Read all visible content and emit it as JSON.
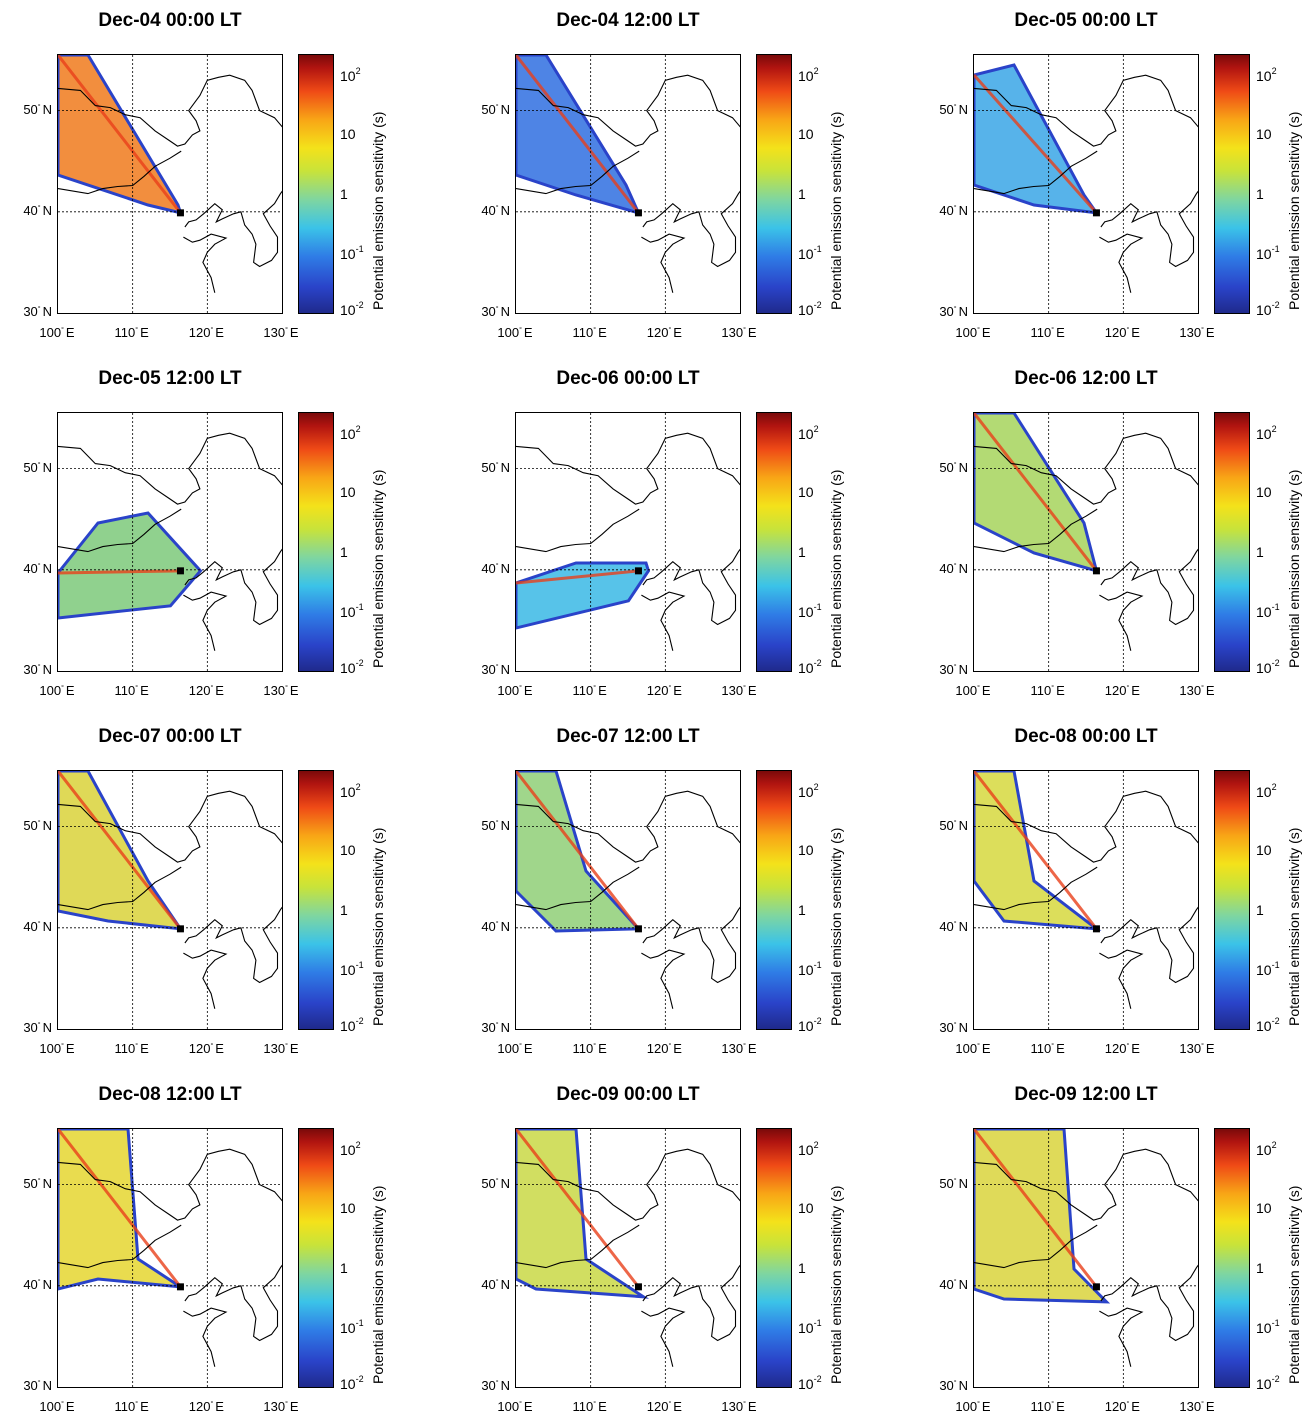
{
  "panels": [
    {
      "title": "Dec-04 00:00 LT",
      "color": "#f07a1c"
    },
    {
      "title": "Dec-04 12:00 LT",
      "color": "#2f6fe0"
    },
    {
      "title": "Dec-05 00:00 LT",
      "color": "#3aa6e6"
    },
    {
      "title": "Dec-05 12:00 LT",
      "color": "#7cc97a"
    },
    {
      "title": "Dec-06 00:00 LT",
      "color": "#39b8e5"
    },
    {
      "title": "Dec-06 12:00 LT",
      "color": "#a6d45c"
    },
    {
      "title": "Dec-07 00:00 LT",
      "color": "#d9d23a"
    },
    {
      "title": "Dec-07 12:00 LT",
      "color": "#8fcf77"
    },
    {
      "title": "Dec-08 00:00 LT",
      "color": "#d6d83e"
    },
    {
      "title": "Dec-08 12:00 LT",
      "color": "#e5d630"
    },
    {
      "title": "Dec-09 00:00 LT",
      "color": "#c9d845"
    },
    {
      "title": "Dec-09 12:00 LT",
      "color": "#d9d33c"
    }
  ],
  "axes": {
    "lat_ticks": [
      "30",
      "40",
      "50"
    ],
    "lat_suffix": "N",
    "lon_ticks": [
      "100",
      "110",
      "120",
      "130"
    ],
    "lon_suffix": "E",
    "deg": "°"
  },
  "colorbar": {
    "label": "Potential emission sensitivity (s)",
    "ticks": [
      {
        "base": "10",
        "exp": "2"
      },
      {
        "base": "10",
        "exp": ""
      },
      {
        "base": "1",
        "exp": ""
      },
      {
        "base": "10",
        "exp": "-1"
      },
      {
        "base": "10",
        "exp": "-2"
      }
    ]
  },
  "receptor": {
    "lon": 116.4,
    "lat": 39.9
  }
}
